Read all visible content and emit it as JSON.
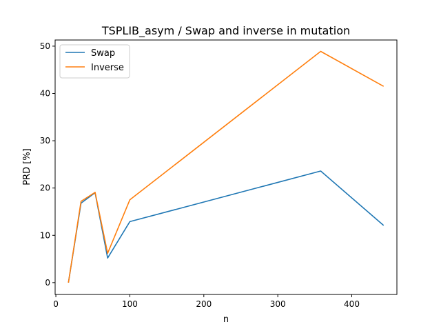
{
  "chart_data": {
    "type": "line",
    "title": "TSPLIB_asym / Swap and inverse in mutation",
    "xlabel": "n",
    "ylabel": "PRD [%]",
    "xlim": [
      -1,
      461
    ],
    "ylim": [
      -2.5,
      51.3
    ],
    "xticks": [
      0,
      100,
      200,
      300,
      400
    ],
    "yticks": [
      0,
      10,
      20,
      30,
      40,
      50
    ],
    "grid": false,
    "legend_position": "upper-left",
    "x": [
      17,
      34,
      53,
      70,
      100,
      358,
      443
    ],
    "series": [
      {
        "name": "Swap",
        "color": "#1f77b4",
        "values": [
          0,
          16.8,
          19.0,
          5.2,
          12.9,
          23.6,
          12.1
        ]
      },
      {
        "name": "Inverse",
        "color": "#ff7f0e",
        "values": [
          0,
          17.2,
          19.1,
          6.2,
          17.5,
          48.9,
          41.5
        ]
      }
    ]
  }
}
